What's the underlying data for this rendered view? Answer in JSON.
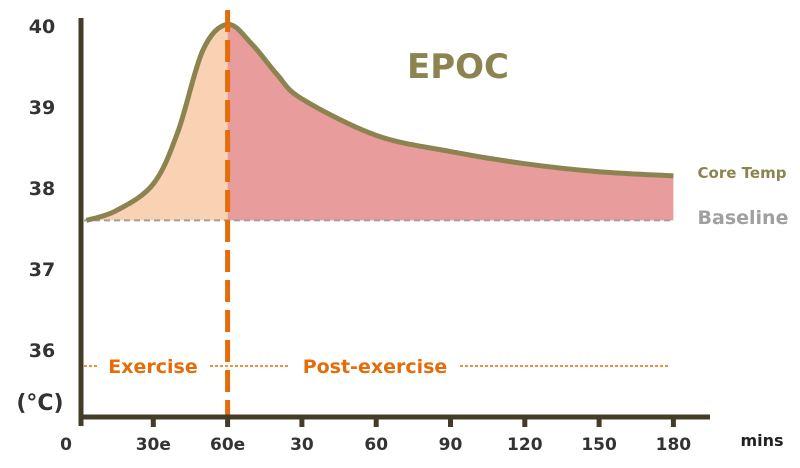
{
  "chart_data": {
    "type": "area",
    "title": "EPOC",
    "ylabel": "(°C)",
    "xlabel": "mins",
    "ylim": [
      35.2,
      40.2
    ],
    "yticks": [
      36,
      37,
      38,
      39,
      40
    ],
    "xticks": [
      {
        "phase": "exercise",
        "min": 0,
        "label": "0"
      },
      {
        "phase": "exercise",
        "min": 30,
        "label": "30e"
      },
      {
        "phase": "exercise",
        "min": 60,
        "label": "60e"
      },
      {
        "phase": "post",
        "min": 30,
        "label": "30"
      },
      {
        "phase": "post",
        "min": 60,
        "label": "60"
      },
      {
        "phase": "post",
        "min": 90,
        "label": "90"
      },
      {
        "phase": "post",
        "min": 120,
        "label": "120"
      },
      {
        "phase": "post",
        "min": 150,
        "label": "150"
      },
      {
        "phase": "post",
        "min": 180,
        "label": "180"
      }
    ],
    "baseline": {
      "name": "Baseline",
      "value": 37.6,
      "color": "#a0a0a0"
    },
    "series": [
      {
        "name": "Core Temp",
        "color": "#8c8450",
        "points": [
          {
            "phase": "exercise",
            "min": 3,
            "temp": 37.6
          },
          {
            "phase": "exercise",
            "min": 15,
            "temp": 37.72
          },
          {
            "phase": "exercise",
            "min": 30,
            "temp": 38.05
          },
          {
            "phase": "exercise",
            "min": 40,
            "temp": 38.7
          },
          {
            "phase": "exercise",
            "min": 50,
            "temp": 39.7
          },
          {
            "phase": "exercise",
            "min": 60,
            "temp": 40.02
          },
          {
            "phase": "post",
            "min": 10,
            "temp": 39.77
          },
          {
            "phase": "post",
            "min": 20,
            "temp": 39.4
          },
          {
            "phase": "post",
            "min": 30,
            "temp": 39.1
          },
          {
            "phase": "post",
            "min": 60,
            "temp": 38.65
          },
          {
            "phase": "post",
            "min": 90,
            "temp": 38.45
          },
          {
            "phase": "post",
            "min": 120,
            "temp": 38.3
          },
          {
            "phase": "post",
            "min": 150,
            "temp": 38.2
          },
          {
            "phase": "post",
            "min": 180,
            "temp": 38.15
          }
        ]
      }
    ],
    "regions": [
      {
        "label": "Exercise",
        "color": "#f9d2b3"
      },
      {
        "label": "Post-exercise",
        "color": "#e89c9c"
      }
    ],
    "divider_color": "#e46c0a",
    "axis_color": "#433c27"
  }
}
